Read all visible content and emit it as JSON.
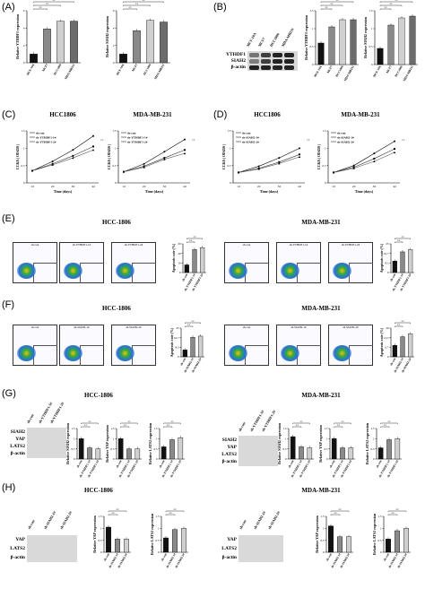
{
  "panel_labels": [
    "(A)",
    "(B)",
    "(C)",
    "(D)",
    "(E)",
    "(F)",
    "(G)",
    "(H)"
  ],
  "titles": {
    "c_left": "HCC1806",
    "c_right": "MDA-MB-231",
    "d_left": "HCC1806",
    "d_right": "MDA-MB-231",
    "e_left": "HCC-1806",
    "e_right": "MDA-MB-231",
    "f_left": "HCC-1806",
    "f_right": "MDA-MB-231",
    "g_left": "HCC-1806",
    "g_right": "MDA-MB-231",
    "h_left": "HCC-1806",
    "h_right": "MDA-MB-231"
  },
  "blot_labels": {
    "b_rows": [
      "YTHDF1",
      "SIAH2",
      "β-actin"
    ],
    "b_lanes": [
      "MCF-10A",
      "MCF7",
      "HCC1806",
      "MDA-MB231"
    ],
    "g_rows_left": [
      "SIAH2",
      "YAP",
      "LATS2",
      "β-actin"
    ],
    "g_rows_right": [
      "SIAH2",
      "YAP",
      "LATS2",
      "β-actin"
    ],
    "g_lanes_left": [
      "sh-con",
      "sh-YTHDF1-1#",
      "sh-YTHDF1-2#"
    ],
    "g_lanes_right": [
      "sh-con",
      "sh-YTHDF1-1#",
      "sh-YTHDF1-2#"
    ],
    "h_rows": [
      "YAP",
      "LATS2",
      "β-actin"
    ],
    "h_lanes": [
      "sh-con",
      "sh-SIAH2-1#",
      "sh-SIAH2-2#"
    ]
  },
  "facs_labels": {
    "e": [
      "sh-con",
      "sh-YTHDF1-1#",
      "sh-YTHDF1-2#"
    ],
    "f": [
      "sh-con",
      "sh-SIAH2-1#",
      "sh-SIAH2-2#"
    ]
  },
  "sig": [
    "**",
    "**",
    "**",
    "*"
  ],
  "chart_data": [
    {
      "type": "bar",
      "id": "A1",
      "ylabel": "Relative YTHDF1 expression",
      "categories": [
        "MCF-10A",
        "MCF7",
        "HCC1806",
        "MDA-MB231"
      ],
      "values": [
        1.0,
        3.9,
        4.8,
        4.8
      ],
      "ylim": [
        0,
        6
      ]
    },
    {
      "type": "bar",
      "id": "A2",
      "ylabel": "Relative SIAH2 expression",
      "categories": [
        "MCF-10A",
        "MCF7",
        "HCC1806",
        "MDA-MB231"
      ],
      "values": [
        1.0,
        3.7,
        4.9,
        4.7
      ],
      "ylim": [
        0,
        6
      ]
    },
    {
      "type": "bar",
      "id": "B1",
      "ylabel": "Relative YTHDF1 expression",
      "categories": [
        "MCF-10A",
        "MCF7",
        "HCC1806",
        "MDA-MB231"
      ],
      "values": [
        0.6,
        1.05,
        1.25,
        1.25
      ],
      "ylim": [
        0,
        1.5
      ]
    },
    {
      "type": "bar",
      "id": "B2",
      "ylabel": "Relative SIAH2 expression",
      "categories": [
        "MCF-10A",
        "MCF7",
        "HCC1806",
        "MDA-MB231"
      ],
      "values": [
        0.45,
        1.1,
        1.3,
        1.35
      ],
      "ylim": [
        0,
        1.5
      ]
    },
    {
      "type": "line",
      "id": "C1",
      "ylabel": "CCK8 ( OD450 )",
      "xlabel": "Time (days)",
      "x": [
        "1d",
        "2d",
        "3d",
        "4d"
      ],
      "series": [
        {
          "name": "sh-con",
          "values": [
            0.35,
            0.62,
            0.95,
            1.35
          ]
        },
        {
          "name": "sh-YTHDF1-1#",
          "values": [
            0.35,
            0.55,
            0.78,
            1.05
          ]
        },
        {
          "name": "sh-YTHDF1-2#",
          "values": [
            0.35,
            0.52,
            0.72,
            0.95
          ]
        }
      ],
      "ylim": [
        0,
        1.5
      ]
    },
    {
      "type": "line",
      "id": "C2",
      "ylabel": "CCK8 ( OD450 )",
      "xlabel": "Time (days)",
      "x": [
        "1d",
        "2d",
        "3d",
        "4d"
      ],
      "series": [
        {
          "name": "sh-con",
          "values": [
            0.32,
            0.55,
            0.9,
            1.25
          ]
        },
        {
          "name": "sh-YTHDF1-1#",
          "values": [
            0.32,
            0.48,
            0.72,
            0.95
          ]
        },
        {
          "name": "sh-YTHDF1-2#",
          "values": [
            0.32,
            0.45,
            0.68,
            0.85
          ]
        }
      ],
      "ylim": [
        0,
        1.5
      ]
    },
    {
      "type": "line",
      "id": "D1",
      "ylabel": "CCK8 ( OD450 )",
      "xlabel": "Time (days)",
      "x": [
        "1d",
        "2d",
        "3d",
        "4d"
      ],
      "series": [
        {
          "name": "sh-con",
          "values": [
            0.3,
            0.48,
            0.72,
            1.0
          ]
        },
        {
          "name": "sh-SIAH2-1#",
          "values": [
            0.3,
            0.42,
            0.6,
            0.82
          ]
        },
        {
          "name": "sh-SIAH2-2#",
          "values": [
            0.3,
            0.4,
            0.56,
            0.75
          ]
        }
      ],
      "ylim": [
        0,
        1.5
      ]
    },
    {
      "type": "line",
      "id": "D2",
      "ylabel": "CCK8 ( OD450 )",
      "xlabel": "Time (days)",
      "x": [
        "1d",
        "2d",
        "3d",
        "4d"
      ],
      "series": [
        {
          "name": "sh-con",
          "values": [
            0.3,
            0.5,
            0.85,
            1.2
          ]
        },
        {
          "name": "sh-SIAH2-1#",
          "values": [
            0.3,
            0.45,
            0.7,
            0.98
          ]
        },
        {
          "name": "sh-SIAH2-2#",
          "values": [
            0.3,
            0.42,
            0.62,
            0.88
          ]
        }
      ],
      "ylim": [
        0,
        1.5
      ]
    },
    {
      "type": "bar",
      "id": "E1",
      "ylabel": "Apoptosis rate (%)",
      "categories": [
        "sh-con",
        "sh-YTHDF1-1#",
        "sh-YTHDF1-2#"
      ],
      "values": [
        8,
        24,
        26
      ],
      "ylim": [
        0,
        30
      ]
    },
    {
      "type": "bar",
      "id": "E2",
      "ylabel": "Apoptosis rate (%)",
      "categories": [
        "sh-con",
        "sh-YTHDF1-1#",
        "sh-YTHDF1-2#"
      ],
      "values": [
        10,
        18,
        20
      ],
      "ylim": [
        0,
        25
      ]
    },
    {
      "type": "bar",
      "id": "F1",
      "ylabel": "Apoptosis rate (%)",
      "categories": [
        "sh-con",
        "sh-SIAH2-1#",
        "sh-SIAH2-2#"
      ],
      "values": [
        6,
        17,
        18
      ],
      "ylim": [
        0,
        25
      ]
    },
    {
      "type": "bar",
      "id": "F2",
      "ylabel": "Apoptosis rate (%)",
      "categories": [
        "sh-con",
        "sh-SIAH2-1#",
        "sh-SIAH2-2#"
      ],
      "values": [
        8,
        14,
        16
      ],
      "ylim": [
        0,
        20
      ]
    },
    {
      "type": "bar",
      "id": "G1",
      "ylabel": "Relative SIAH2 expression",
      "categories": [
        "sh-con",
        "sh-YTHDF1-1#",
        "sh-YTHDF1-2#"
      ],
      "values": [
        1.0,
        0.55,
        0.5
      ],
      "ylim": [
        0,
        1.5
      ]
    },
    {
      "type": "bar",
      "id": "G2",
      "ylabel": "Relative YAP expression",
      "categories": [
        "sh-con",
        "sh-YTHDF1-1#",
        "sh-YTHDF1-2#"
      ],
      "values": [
        1.0,
        0.5,
        0.5
      ],
      "ylim": [
        0,
        1.5
      ]
    },
    {
      "type": "bar",
      "id": "G3",
      "ylabel": "Relative LATS2 expression",
      "categories": [
        "sh-con",
        "sh-YTHDF1-1#",
        "sh-YTHDF1-2#"
      ],
      "values": [
        0.6,
        0.95,
        1.05
      ],
      "ylim": [
        0,
        1.5
      ]
    },
    {
      "type": "bar",
      "id": "G4",
      "ylabel": "Relative SIAH2 expression",
      "categories": [
        "sh-con",
        "sh-YTHDF1-1#",
        "sh-YTHDF1-2#"
      ],
      "values": [
        1.1,
        0.6,
        0.55
      ],
      "ylim": [
        0,
        1.5
      ]
    },
    {
      "type": "bar",
      "id": "G5",
      "ylabel": "Relative YAP expression",
      "categories": [
        "sh-con",
        "sh-YTHDF1-1#",
        "sh-YTHDF1-2#"
      ],
      "values": [
        1.0,
        0.55,
        0.55
      ],
      "ylim": [
        0,
        1.5
      ]
    },
    {
      "type": "bar",
      "id": "G6",
      "ylabel": "Relative LATS2 expression",
      "categories": [
        "sh-con",
        "sh-YTHDF1-1#",
        "sh-YTHDF1-2#"
      ],
      "values": [
        0.55,
        0.95,
        1.0
      ],
      "ylim": [
        0,
        1.5
      ]
    },
    {
      "type": "bar",
      "id": "H1",
      "ylabel": "Relative YAP expression",
      "categories": [
        "sh-con",
        "sh-SIAH2-1#",
        "sh-SIAH2-2#"
      ],
      "values": [
        1.05,
        0.55,
        0.55
      ],
      "ylim": [
        0,
        1.5
      ]
    },
    {
      "type": "bar",
      "id": "H2",
      "ylabel": "Relative LATS2 expression",
      "categories": [
        "sh-con",
        "sh-SIAH2-1#",
        "sh-SIAH2-2#"
      ],
      "values": [
        0.6,
        0.95,
        1.0
      ],
      "ylim": [
        0,
        1.5
      ]
    },
    {
      "type": "bar",
      "id": "H3",
      "ylabel": "Relative YAP expression",
      "categories": [
        "sh-con",
        "sh-SIAH2-1#",
        "sh-SIAH2-2#"
      ],
      "values": [
        1.1,
        0.65,
        0.65
      ],
      "ylim": [
        0,
        1.5
      ]
    },
    {
      "type": "bar",
      "id": "H4",
      "ylabel": "Relative LATS2 expression",
      "categories": [
        "sh-con",
        "sh-SIAH2-1#",
        "sh-SIAH2-2#"
      ],
      "values": [
        0.55,
        0.9,
        1.0
      ],
      "ylim": [
        0,
        1.5
      ]
    }
  ]
}
